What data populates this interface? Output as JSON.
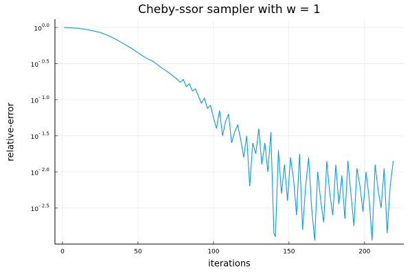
{
  "chart_data": {
    "type": "line",
    "title": "Cheby-ssor sampler with w = 1",
    "x_label": "iterations",
    "y_label": "relative-error",
    "log_y": true,
    "grid": true,
    "xlim": [
      -5,
      226
    ],
    "xticks": [
      0,
      50,
      100,
      150,
      200
    ],
    "ylim": [
      0.001,
      1.3
    ],
    "yticks": [
      {
        "value": 1,
        "label": "10^0.0"
      },
      {
        "value": 0.3162,
        "label": "10^- 0.5"
      },
      {
        "value": 0.1,
        "label": "10^- 1.0"
      },
      {
        "value": 0.03162,
        "label": "10^- 1.5"
      },
      {
        "value": 0.01,
        "label": "10^- 2.0"
      },
      {
        "value": 0.003162,
        "label": "10^- 2.5"
      }
    ],
    "x": [
      1,
      5,
      10,
      15,
      20,
      25,
      30,
      35,
      40,
      45,
      50,
      55,
      60,
      65,
      70,
      75,
      78,
      80,
      82,
      84,
      86,
      88,
      90,
      92,
      94,
      96,
      98,
      100,
      102,
      104,
      106,
      108,
      110,
      112,
      114,
      116,
      118,
      120,
      122,
      124,
      126,
      128,
      130,
      132,
      134,
      136,
      138,
      140,
      141,
      143,
      145,
      147,
      149,
      151,
      153,
      155,
      157,
      159,
      161,
      163,
      165,
      167,
      169,
      171,
      173,
      175,
      177,
      179,
      181,
      183,
      185,
      187,
      189,
      191,
      193,
      195,
      197,
      199,
      201,
      203,
      205,
      207,
      209,
      211,
      213,
      215,
      217,
      219
    ],
    "series": [
      {
        "color": "#009af9",
        "values": [
          1,
          0.9931,
          0.9772,
          0.9441,
          0.9016,
          0.8511,
          0.7762,
          0.6918,
          0.6026,
          0.5248,
          0.4467,
          0.3802,
          0.3388,
          0.2818,
          0.2399,
          0.1995,
          0.1738,
          0.1905,
          0.1514,
          0.166,
          0.1318,
          0.1413,
          0.1122,
          0.08913,
          0.1047,
          0.07586,
          0.08318,
          0.05623,
          0.03981,
          0.07079,
          0.03162,
          0.05012,
          0.0631,
          0.02512,
          0.03548,
          0.04467,
          0.02818,
          0.01585,
          0.03162,
          0.00631,
          0.02512,
          0.01778,
          0.03981,
          0.01259,
          0.02512,
          0.01,
          0.03548,
          0.001413,
          0.001259,
          0.01995,
          0.005012,
          0.01259,
          0.003981,
          0.01585,
          0.007943,
          0.002512,
          0.01778,
          0.001585,
          0.00631,
          0.01585,
          0.003162,
          0.001122,
          0.01,
          0.003981,
          0.001995,
          0.01413,
          0.005012,
          0.002512,
          0.01259,
          0.003548,
          0.008913,
          0.002239,
          0.01413,
          0.005012,
          0.001778,
          0.01122,
          0.00631,
          0.002818,
          0.01,
          0.004467,
          0.001122,
          0.01259,
          0.005623,
          0.003162,
          0.01122,
          0.001413,
          0.00631,
          0.01413
        ]
      }
    ]
  }
}
